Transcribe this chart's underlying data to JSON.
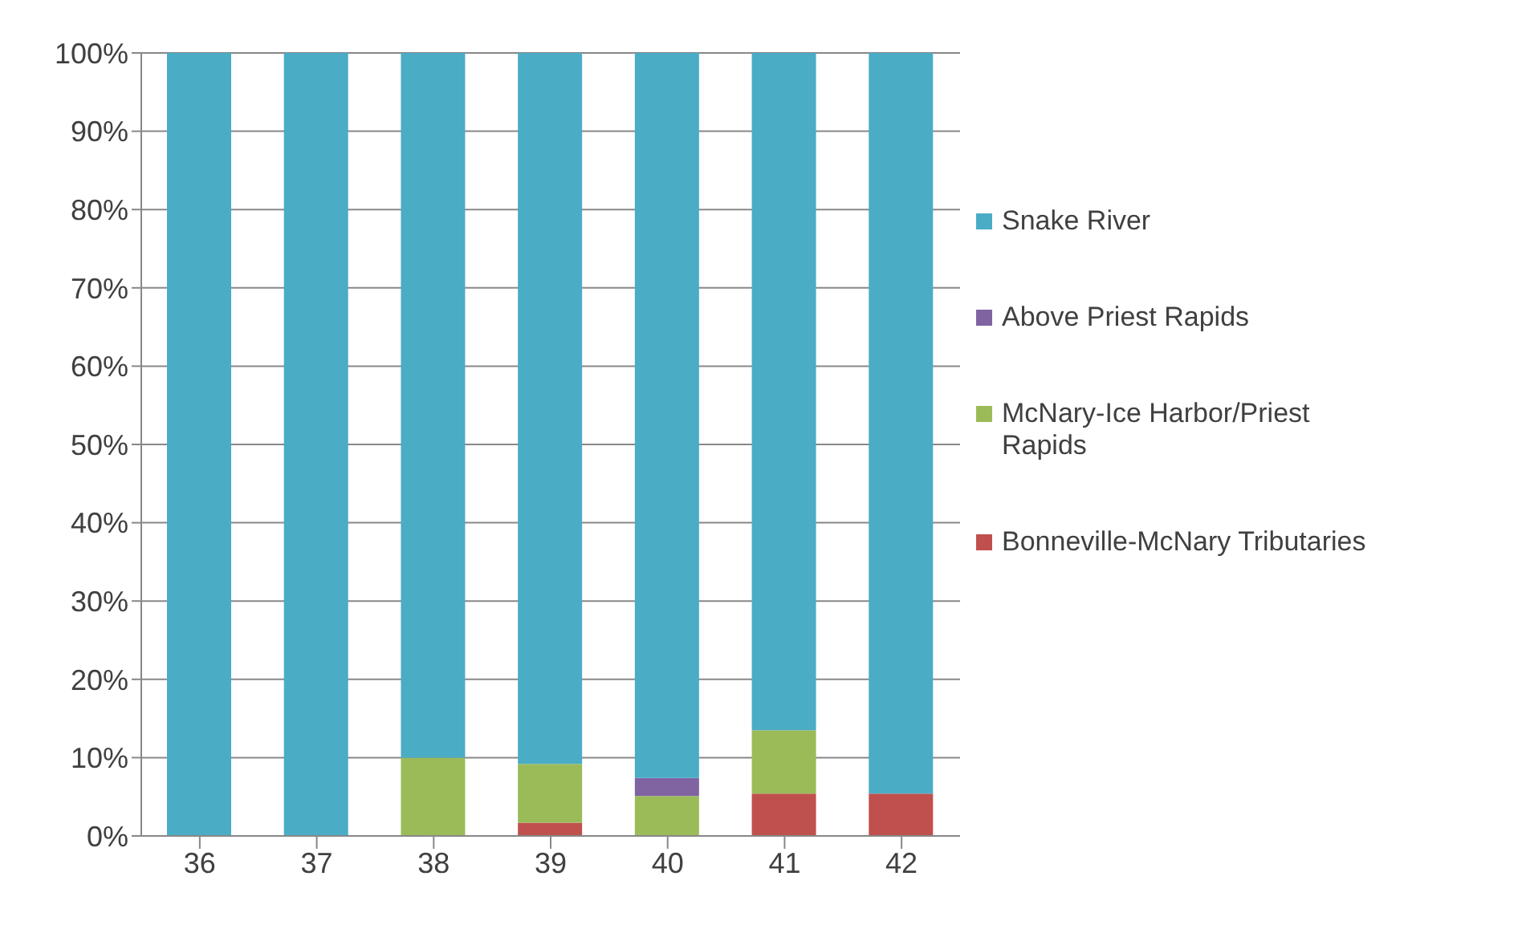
{
  "chart_data": {
    "type": "bar",
    "stacked": true,
    "categories": [
      "36",
      "37",
      "38",
      "39",
      "40",
      "41",
      "42"
    ],
    "series": [
      {
        "name": "Bonneville-McNary Tributaries",
        "color": "#c0504d",
        "values": [
          0,
          0,
          0,
          1.7,
          0,
          5.4,
          5.4
        ]
      },
      {
        "name": "McNary-Ice Harbor/Priest Rapids",
        "color": "#9bbb59",
        "values": [
          0,
          0,
          10,
          7.5,
          5.1,
          8.1,
          0
        ]
      },
      {
        "name": "Above Priest Rapids",
        "color": "#8064a2",
        "values": [
          0,
          0,
          0,
          0,
          2.3,
          0,
          0
        ]
      },
      {
        "name": "Snake River",
        "color": "#4bacc6",
        "values": [
          100,
          100,
          90,
          90.8,
          92.6,
          86.5,
          94.6
        ]
      }
    ],
    "ylim": [
      0,
      100
    ],
    "yticks": [
      {
        "value": 0,
        "label": "0%"
      },
      {
        "value": 10,
        "label": "10%"
      },
      {
        "value": 20,
        "label": "20%"
      },
      {
        "value": 30,
        "label": "30%"
      },
      {
        "value": 40,
        "label": "40%"
      },
      {
        "value": 50,
        "label": "50%"
      },
      {
        "value": 60,
        "label": "60%"
      },
      {
        "value": 70,
        "label": "70%"
      },
      {
        "value": 80,
        "label": "80%"
      },
      {
        "value": 90,
        "label": "90%"
      },
      {
        "value": 100,
        "label": "100%"
      }
    ],
    "grid": "y",
    "legend": "right"
  }
}
